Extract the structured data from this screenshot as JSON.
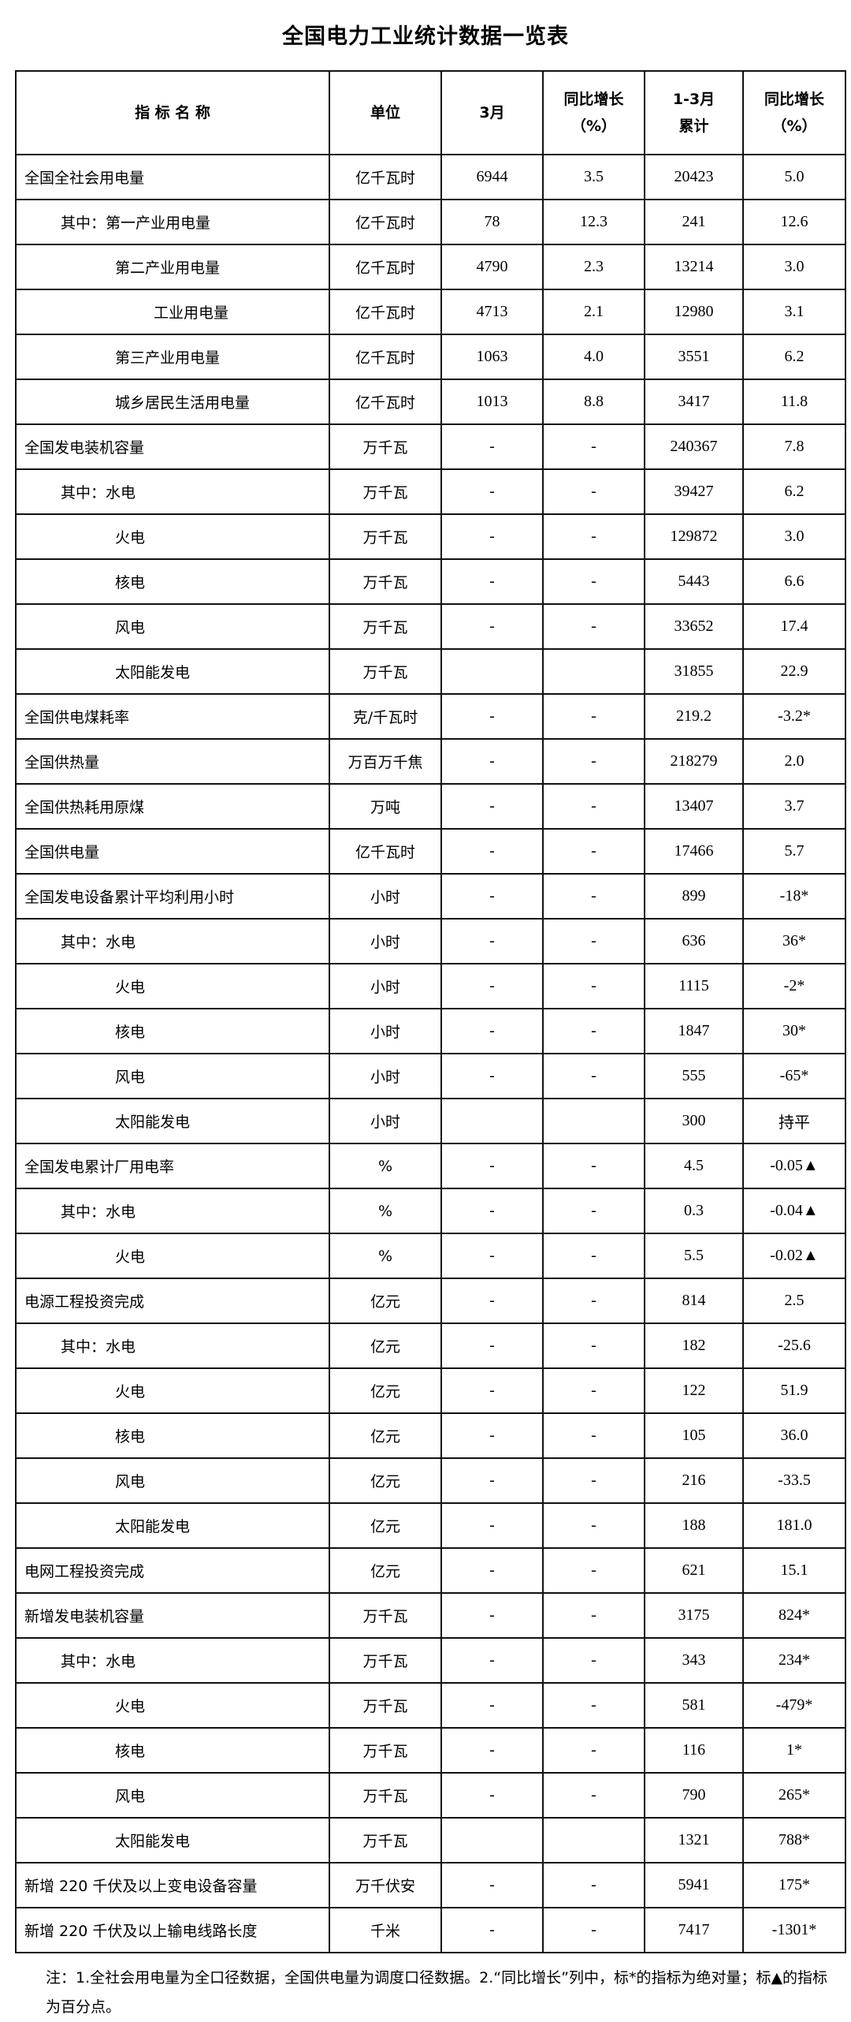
{
  "title": "全国电力工业统计数据一览表",
  "headers": [
    "指 标 名 称",
    "单位",
    "3月",
    "同比增长\n（%）",
    "1-3月\n累计",
    "同比增长\n（%）"
  ],
  "rows": [
    {
      "name": "全国全社会用电量",
      "level": 0,
      "unit": "亿千瓦时",
      "month": "6944",
      "month_yoy": "3.5",
      "cum": "20423",
      "cum_yoy": "5.0"
    },
    {
      "name": "其中：第一产业用电量",
      "level": 1,
      "unit": "亿千瓦时",
      "month": "78",
      "month_yoy": "12.3",
      "cum": "241",
      "cum_yoy": "12.6"
    },
    {
      "name": "第二产业用电量",
      "level": 2,
      "unit": "亿千瓦时",
      "month": "4790",
      "month_yoy": "2.3",
      "cum": "13214",
      "cum_yoy": "3.0"
    },
    {
      "name": "工业用电量",
      "level": 3,
      "unit": "亿千瓦时",
      "month": "4713",
      "month_yoy": "2.1",
      "cum": "12980",
      "cum_yoy": "3.1"
    },
    {
      "name": "第三产业用电量",
      "level": 2,
      "unit": "亿千瓦时",
      "month": "1063",
      "month_yoy": "4.0",
      "cum": "3551",
      "cum_yoy": "6.2"
    },
    {
      "name": "城乡居民生活用电量",
      "level": 2,
      "unit": "亿千瓦时",
      "month": "1013",
      "month_yoy": "8.8",
      "cum": "3417",
      "cum_yoy": "11.8"
    },
    {
      "name": "全国发电装机容量",
      "level": 0,
      "unit": "万千瓦",
      "month": "-",
      "month_yoy": "-",
      "cum": "240367",
      "cum_yoy": "7.8"
    },
    {
      "name": "其中：水电",
      "level": 1,
      "unit": "万千瓦",
      "month": "-",
      "month_yoy": "-",
      "cum": "39427",
      "cum_yoy": "6.2"
    },
    {
      "name": "火电",
      "level": 2,
      "unit": "万千瓦",
      "month": "-",
      "month_yoy": "-",
      "cum": "129872",
      "cum_yoy": "3.0"
    },
    {
      "name": "核电",
      "level": 2,
      "unit": "万千瓦",
      "month": "-",
      "month_yoy": "-",
      "cum": "5443",
      "cum_yoy": "6.6"
    },
    {
      "name": "风电",
      "level": 2,
      "unit": "万千瓦",
      "month": "-",
      "month_yoy": "-",
      "cum": "33652",
      "cum_yoy": "17.4"
    },
    {
      "name": "太阳能发电",
      "level": 2,
      "unit": "万千瓦",
      "month": "",
      "month_yoy": "",
      "cum": "31855",
      "cum_yoy": "22.9"
    },
    {
      "name": "全国供电煤耗率",
      "level": 0,
      "unit": "克/千瓦时",
      "month": "-",
      "month_yoy": "-",
      "cum": "219.2",
      "cum_yoy": "-3.2*"
    },
    {
      "name": "全国供热量",
      "level": 0,
      "unit": "万百万千焦",
      "month": "-",
      "month_yoy": "-",
      "cum": "218279",
      "cum_yoy": "2.0"
    },
    {
      "name": "全国供热耗用原煤",
      "level": 0,
      "unit": "万吨",
      "month": "-",
      "month_yoy": "-",
      "cum": "13407",
      "cum_yoy": "3.7"
    },
    {
      "name": "全国供电量",
      "level": 0,
      "unit": "亿千瓦时",
      "month": "-",
      "month_yoy": "-",
      "cum": "17466",
      "cum_yoy": "5.7"
    },
    {
      "name": "全国发电设备累计平均利用小时",
      "level": 0,
      "unit": "小时",
      "month": "-",
      "month_yoy": "-",
      "cum": "899",
      "cum_yoy": "-18*"
    },
    {
      "name": "其中：水电",
      "level": 1,
      "unit": "小时",
      "month": "-",
      "month_yoy": "-",
      "cum": "636",
      "cum_yoy": "36*"
    },
    {
      "name": "火电",
      "level": 2,
      "unit": "小时",
      "month": "-",
      "month_yoy": "-",
      "cum": "1115",
      "cum_yoy": "-2*"
    },
    {
      "name": "核电",
      "level": 2,
      "unit": "小时",
      "month": "-",
      "month_yoy": "-",
      "cum": "1847",
      "cum_yoy": "30*"
    },
    {
      "name": "风电",
      "level": 2,
      "unit": "小时",
      "month": "-",
      "month_yoy": "-",
      "cum": "555",
      "cum_yoy": "-65*"
    },
    {
      "name": "太阳能发电",
      "level": 2,
      "unit": "小时",
      "month": "",
      "month_yoy": "",
      "cum": "300",
      "cum_yoy": "持平"
    },
    {
      "name": "全国发电累计厂用电率",
      "level": 0,
      "unit": "%",
      "month": "-",
      "month_yoy": "-",
      "cum": "4.5",
      "cum_yoy": "-0.05▲"
    },
    {
      "name": "其中：水电",
      "level": 1,
      "unit": "%",
      "month": "-",
      "month_yoy": "-",
      "cum": "0.3",
      "cum_yoy": "-0.04▲"
    },
    {
      "name": "火电",
      "level": 2,
      "unit": "%",
      "month": "-",
      "month_yoy": "-",
      "cum": "5.5",
      "cum_yoy": "-0.02▲",
      "double_top": true
    },
    {
      "name": "电源工程投资完成",
      "level": 0,
      "unit": "亿元",
      "month": "-",
      "month_yoy": "-",
      "cum": "814",
      "cum_yoy": "2.5"
    },
    {
      "name": "其中：水电",
      "level": 1,
      "unit": "亿元",
      "month": "-",
      "month_yoy": "-",
      "cum": "182",
      "cum_yoy": "-25.6"
    },
    {
      "name": "火电",
      "level": 2,
      "unit": "亿元",
      "month": "-",
      "month_yoy": "-",
      "cum": "122",
      "cum_yoy": "51.9"
    },
    {
      "name": "核电",
      "level": 2,
      "unit": "亿元",
      "month": "-",
      "month_yoy": "-",
      "cum": "105",
      "cum_yoy": "36.0"
    },
    {
      "name": "风电",
      "level": 2,
      "unit": "亿元",
      "month": "-",
      "month_yoy": "-",
      "cum": "216",
      "cum_yoy": "-33.5"
    },
    {
      "name": "太阳能发电",
      "level": 2,
      "unit": "亿元",
      "month": "-",
      "month_yoy": "-",
      "cum": "188",
      "cum_yoy": "181.0"
    },
    {
      "name": "电网工程投资完成",
      "level": 0,
      "unit": "亿元",
      "month": "-",
      "month_yoy": "-",
      "cum": "621",
      "cum_yoy": "15.1"
    },
    {
      "name": "新增发电装机容量",
      "level": 0,
      "unit": "万千瓦",
      "month": "-",
      "month_yoy": "-",
      "cum": "3175",
      "cum_yoy": "824*"
    },
    {
      "name": "其中：水电",
      "level": 1,
      "unit": "万千瓦",
      "month": "-",
      "month_yoy": "-",
      "cum": "343",
      "cum_yoy": "234*"
    },
    {
      "name": "火电",
      "level": 2,
      "unit": "万千瓦",
      "month": "-",
      "month_yoy": "-",
      "cum": "581",
      "cum_yoy": "-479*"
    },
    {
      "name": "核电",
      "level": 2,
      "unit": "万千瓦",
      "month": "-",
      "month_yoy": "-",
      "cum": "116",
      "cum_yoy": "1*"
    },
    {
      "name": "风电",
      "level": 2,
      "unit": "万千瓦",
      "month": "-",
      "month_yoy": "-",
      "cum": "790",
      "cum_yoy": "265*"
    },
    {
      "name": "太阳能发电",
      "level": 2,
      "unit": "万千瓦",
      "month": "",
      "month_yoy": "",
      "cum": "1321",
      "cum_yoy": "788*"
    },
    {
      "name": "新增 220 千伏及以上变电设备容量",
      "level": 0,
      "unit": "万千伏安",
      "month": "-",
      "month_yoy": "-",
      "cum": "5941",
      "cum_yoy": "175*"
    },
    {
      "name": "新增 220 千伏及以上输电线路长度",
      "level": 0,
      "unit": "千米",
      "month": "-",
      "month_yoy": "-",
      "cum": "7417",
      "cum_yoy": "-1301*"
    }
  ],
  "note": "注：1.全社会用电量为全口径数据，全国供电量为调度口径数据。2.“同比增长”列中，标*的指标为绝对量；标▲的指标为百分点。"
}
